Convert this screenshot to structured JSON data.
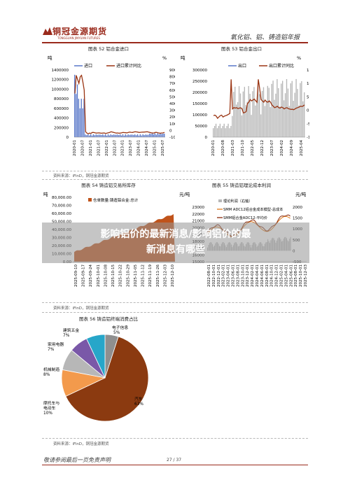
{
  "header": {
    "logo_text": "铜冠金源期货",
    "logo_sub": "TONGGUAN JINYUAN FUTURES",
    "right_title": "氧化铝、铝、铸造铝年报"
  },
  "fig52": {
    "title": "图表 52  铝合金进口",
    "unit_left": "吨",
    "unit_right": "%",
    "legend": [
      "进口",
      "进口累计同比"
    ],
    "y_left_ticks": [
      "1400000",
      "1200000",
      "1000000",
      "800000",
      "600000",
      "400000",
      "200000",
      "0"
    ],
    "y_right_ticks": [
      "900",
      "800",
      "700",
      "600",
      "500",
      "400",
      "300",
      "200",
      "100",
      "0",
      "-100"
    ],
    "x_ticks": [
      "2020-01",
      "2020-07",
      "2021-01",
      "2021-07",
      "2022-01",
      "2022-07",
      "2023-01",
      "2023-07",
      "2024-01",
      "2024-07",
      "2025-01",
      "2025-07"
    ],
    "source": "资料来源：iFinD，铜冠金源期货"
  },
  "fig53": {
    "title": "图表 53  铝合金出口",
    "unit_left": "吨",
    "unit_right": "%",
    "legend": [
      "出口",
      "出口累计同比"
    ],
    "y_left_ticks": [
      "300000",
      "250000",
      "200000",
      "150000",
      "100000",
      "50000",
      "0"
    ],
    "y_right_ticks": [
      "150",
      "100",
      "50",
      "0",
      "-50",
      "-100"
    ],
    "x_ticks": [
      "2020-01",
      "2020-08",
      "2021-03",
      "2021-10",
      "2022-05",
      "2022-12",
      "2023-07",
      "2024-02",
      "2024-09",
      "2025-04"
    ]
  },
  "fig54": {
    "title": "图表 54  铸造铝交易所库存",
    "unit": "吨",
    "legend": "仓单数量:铸造铝合金:总计",
    "y_ticks": [
      "80,000.00",
      "70,000.00",
      "60,000.00",
      "50,000.00",
      "40,000.00",
      "30,000.00",
      "20,000.00",
      "10,000.00",
      "0.00"
    ],
    "x_ticks": [
      "2025-09-10",
      "2025-09-17",
      "2025-09-24",
      "2025-10-01",
      "2025-10-08",
      "2025-10-15",
      "2025-10-22",
      "2025-10-29",
      "2025-11-05",
      "2025-11-12",
      "2025-11-19",
      "2025-11-26",
      "2025-12-03",
      "2025-12-10"
    ],
    "source": "资料来源：iFinD，铜冠金源期货"
  },
  "fig55": {
    "title": "图表 55  铸造铝理论成本利润",
    "unit_left": "元/吨",
    "unit_right": "元/吨",
    "legend": [
      "理论利润（右轴）",
      "SMM ADC12铝合金成本模型-总成本",
      "SMM铝合金ADC12-平均价"
    ],
    "y_left_ticks": [
      "23000",
      "22000",
      "21000",
      "20000",
      "19000",
      "18000",
      "17000",
      "16000",
      "15000"
    ],
    "y_right_ticks": [
      "2000",
      "1500",
      "1000",
      "500",
      "0",
      "-500"
    ],
    "x_ticks": [
      "2022-08-01",
      "2022-10-01",
      "2022-12-01",
      "2023-02-01",
      "2023-04-01",
      "2023-06-01",
      "2023-08-01",
      "2023-10-01",
      "2023-12-01",
      "2024-02-01",
      "2024-04-01",
      "2024-06-01",
      "2024-08-01",
      "2024-10-01",
      "2024-12-01",
      "2025-02-01",
      "2025-04-01",
      "2025-06-01",
      "2025-08-01",
      "2025-10-01",
      "2025-12-03"
    ]
  },
  "overlay": {
    "line1": "影响铝价的最新消息/影响铝价的最",
    "line2": "新消息有哪些"
  },
  "fig56": {
    "title": "图表 56  铸造铝终端消费占比",
    "source": "资料来源：iFinD，铜冠金源期货",
    "slices": [
      {
        "label": "电子信息",
        "pct": "5%",
        "value": 5,
        "color": "#8f8f8f"
      },
      {
        "label": "汽车",
        "pct": "63%",
        "value": 63,
        "color": "#8b3a10"
      },
      {
        "label": "摩托车与电动车",
        "pct": "10%",
        "value": 10,
        "color": "#f39a4c"
      },
      {
        "label": "机械制造",
        "pct": "8%",
        "value": 8,
        "color": "#b7b7b7"
      },
      {
        "label": "家用电器",
        "pct": "7%",
        "value": 7,
        "color": "#7a58a8"
      },
      {
        "label": "建筑五金",
        "pct": "7%",
        "value": 7,
        "color": "#27a6c9"
      }
    ]
  },
  "fig_sources": {
    "s52": "资料来源：iFinD，铜冠金源期货",
    "s54": "资料来源：iFinD，铜冠金源期货",
    "s56": "资料来源：iFinD，铜冠金源期货"
  },
  "footer": {
    "left": "敬请参阅最后一页免责声明",
    "page": "27 / 37"
  }
}
